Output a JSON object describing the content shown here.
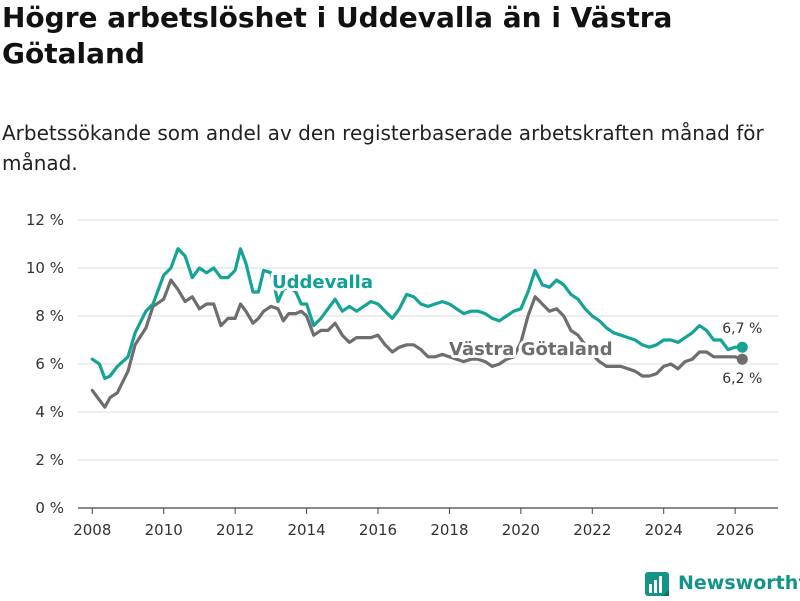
{
  "header": {
    "title": "Högre arbetslöshet i Uddevalla än i Västra Götaland",
    "subtitle": "Arbetssökande som andel av den registerbaserade arbetskraften månad för månad."
  },
  "branding": {
    "name": "Newsworthy",
    "color": "#149488"
  },
  "chart_data": {
    "type": "line",
    "title": "Högre arbetslöshet i Uddevalla än i Västra Götaland",
    "subtitle": "Arbetssökande som andel av den registerbaserade arbetskraften månad för månad.",
    "xlabel": "",
    "ylabel": "",
    "xlim": [
      2007.6,
      2027.2
    ],
    "ylim": [
      0,
      12
    ],
    "yticks": [
      0,
      2,
      4,
      6,
      8,
      10,
      12
    ],
    "ytick_labels": [
      "0 %",
      "2 %",
      "4 %",
      "6 %",
      "8 %",
      "10 %",
      "12 %"
    ],
    "xticks": [
      2008,
      2010,
      2012,
      2014,
      2016,
      2018,
      2020,
      2022,
      2024,
      2026
    ],
    "xtick_labels": [
      "2008",
      "2010",
      "2012",
      "2014",
      "2016",
      "2018",
      "2020",
      "2022",
      "2024",
      "2026"
    ],
    "grid": "horizontal",
    "series": [
      {
        "name": "Uddevalla",
        "color": "#14a396",
        "end_label": "6,7 %",
        "x": [
          2008.0,
          2008.2,
          2008.35,
          2008.5,
          2008.7,
          2009.0,
          2009.2,
          2009.5,
          2009.7,
          2010.0,
          2010.2,
          2010.4,
          2010.6,
          2010.8,
          2011.0,
          2011.2,
          2011.4,
          2011.6,
          2011.8,
          2012.0,
          2012.15,
          2012.3,
          2012.5,
          2012.65,
          2012.8,
          2013.0,
          2013.2,
          2013.35,
          2013.5,
          2013.7,
          2013.85,
          2014.0,
          2014.2,
          2014.4,
          2014.6,
          2014.8,
          2015.0,
          2015.2,
          2015.4,
          2015.6,
          2015.8,
          2016.0,
          2016.2,
          2016.4,
          2016.6,
          2016.8,
          2017.0,
          2017.2,
          2017.4,
          2017.6,
          2017.8,
          2018.0,
          2018.2,
          2018.4,
          2018.6,
          2018.8,
          2019.0,
          2019.2,
          2019.4,
          2019.6,
          2019.8,
          2020.0,
          2020.2,
          2020.4,
          2020.6,
          2020.8,
          2021.0,
          2021.2,
          2021.4,
          2021.6,
          2021.8,
          2022.0,
          2022.2,
          2022.4,
          2022.6,
          2022.8,
          2023.0,
          2023.2,
          2023.4,
          2023.6,
          2023.8,
          2024.0,
          2024.2,
          2024.4,
          2024.6,
          2024.8,
          2025.0,
          2025.2,
          2025.4,
          2025.6,
          2025.8,
          2026.0,
          2026.2
        ],
        "values": [
          6.2,
          6.0,
          5.4,
          5.5,
          5.9,
          6.3,
          7.3,
          8.2,
          8.5,
          9.7,
          10.0,
          10.8,
          10.5,
          9.6,
          10.0,
          9.8,
          10.0,
          9.6,
          9.6,
          9.9,
          10.8,
          10.2,
          9.0,
          9.0,
          9.9,
          9.8,
          8.6,
          9.1,
          9.2,
          9.0,
          8.5,
          8.5,
          7.6,
          7.9,
          8.3,
          8.7,
          8.2,
          8.4,
          8.2,
          8.4,
          8.6,
          8.5,
          8.2,
          7.9,
          8.3,
          8.9,
          8.8,
          8.5,
          8.4,
          8.5,
          8.6,
          8.5,
          8.3,
          8.1,
          8.2,
          8.2,
          8.1,
          7.9,
          7.8,
          8.0,
          8.2,
          8.3,
          9.0,
          9.9,
          9.3,
          9.2,
          9.5,
          9.3,
          8.9,
          8.7,
          8.3,
          8.0,
          7.8,
          7.5,
          7.3,
          7.2,
          7.1,
          7.0,
          6.8,
          6.7,
          6.8,
          7.0,
          7.0,
          6.9,
          7.1,
          7.3,
          7.6,
          7.4,
          7.0,
          7.0,
          6.6,
          6.7,
          6.7
        ]
      },
      {
        "name": "Västra Götaland",
        "color": "#6e6e6e",
        "end_label": "6,2 %",
        "x": [
          2008.0,
          2008.2,
          2008.35,
          2008.5,
          2008.7,
          2009.0,
          2009.2,
          2009.5,
          2009.7,
          2010.0,
          2010.2,
          2010.4,
          2010.6,
          2010.8,
          2011.0,
          2011.2,
          2011.4,
          2011.6,
          2011.8,
          2012.0,
          2012.15,
          2012.3,
          2012.5,
          2012.65,
          2012.8,
          2013.0,
          2013.2,
          2013.35,
          2013.5,
          2013.7,
          2013.85,
          2014.0,
          2014.2,
          2014.4,
          2014.6,
          2014.8,
          2015.0,
          2015.2,
          2015.4,
          2015.6,
          2015.8,
          2016.0,
          2016.2,
          2016.4,
          2016.6,
          2016.8,
          2017.0,
          2017.2,
          2017.4,
          2017.6,
          2017.8,
          2018.0,
          2018.2,
          2018.4,
          2018.6,
          2018.8,
          2019.0,
          2019.2,
          2019.4,
          2019.6,
          2019.8,
          2020.0,
          2020.2,
          2020.4,
          2020.6,
          2020.8,
          2021.0,
          2021.2,
          2021.4,
          2021.6,
          2021.8,
          2022.0,
          2022.2,
          2022.4,
          2022.6,
          2022.8,
          2023.0,
          2023.2,
          2023.4,
          2023.6,
          2023.8,
          2024.0,
          2024.2,
          2024.4,
          2024.6,
          2024.8,
          2025.0,
          2025.2,
          2025.4,
          2025.6,
          2025.8,
          2026.0,
          2026.2
        ],
        "values": [
          4.9,
          4.5,
          4.2,
          4.6,
          4.8,
          5.7,
          6.8,
          7.5,
          8.4,
          8.7,
          9.5,
          9.1,
          8.6,
          8.8,
          8.3,
          8.5,
          8.5,
          7.6,
          7.9,
          7.9,
          8.5,
          8.2,
          7.7,
          7.9,
          8.2,
          8.4,
          8.3,
          7.8,
          8.1,
          8.1,
          8.2,
          8.0,
          7.2,
          7.4,
          7.4,
          7.7,
          7.2,
          6.9,
          7.1,
          7.1,
          7.1,
          7.2,
          6.8,
          6.5,
          6.7,
          6.8,
          6.8,
          6.6,
          6.3,
          6.3,
          6.4,
          6.3,
          6.2,
          6.1,
          6.2,
          6.2,
          6.1,
          5.9,
          6.0,
          6.2,
          6.3,
          6.9,
          8.0,
          8.8,
          8.5,
          8.2,
          8.3,
          8.0,
          7.4,
          7.2,
          6.8,
          6.4,
          6.1,
          5.9,
          5.9,
          5.9,
          5.8,
          5.7,
          5.5,
          5.5,
          5.6,
          5.9,
          6.0,
          5.8,
          6.1,
          6.2,
          6.5,
          6.5,
          6.3,
          6.3,
          6.3,
          6.3,
          6.2
        ]
      }
    ]
  }
}
